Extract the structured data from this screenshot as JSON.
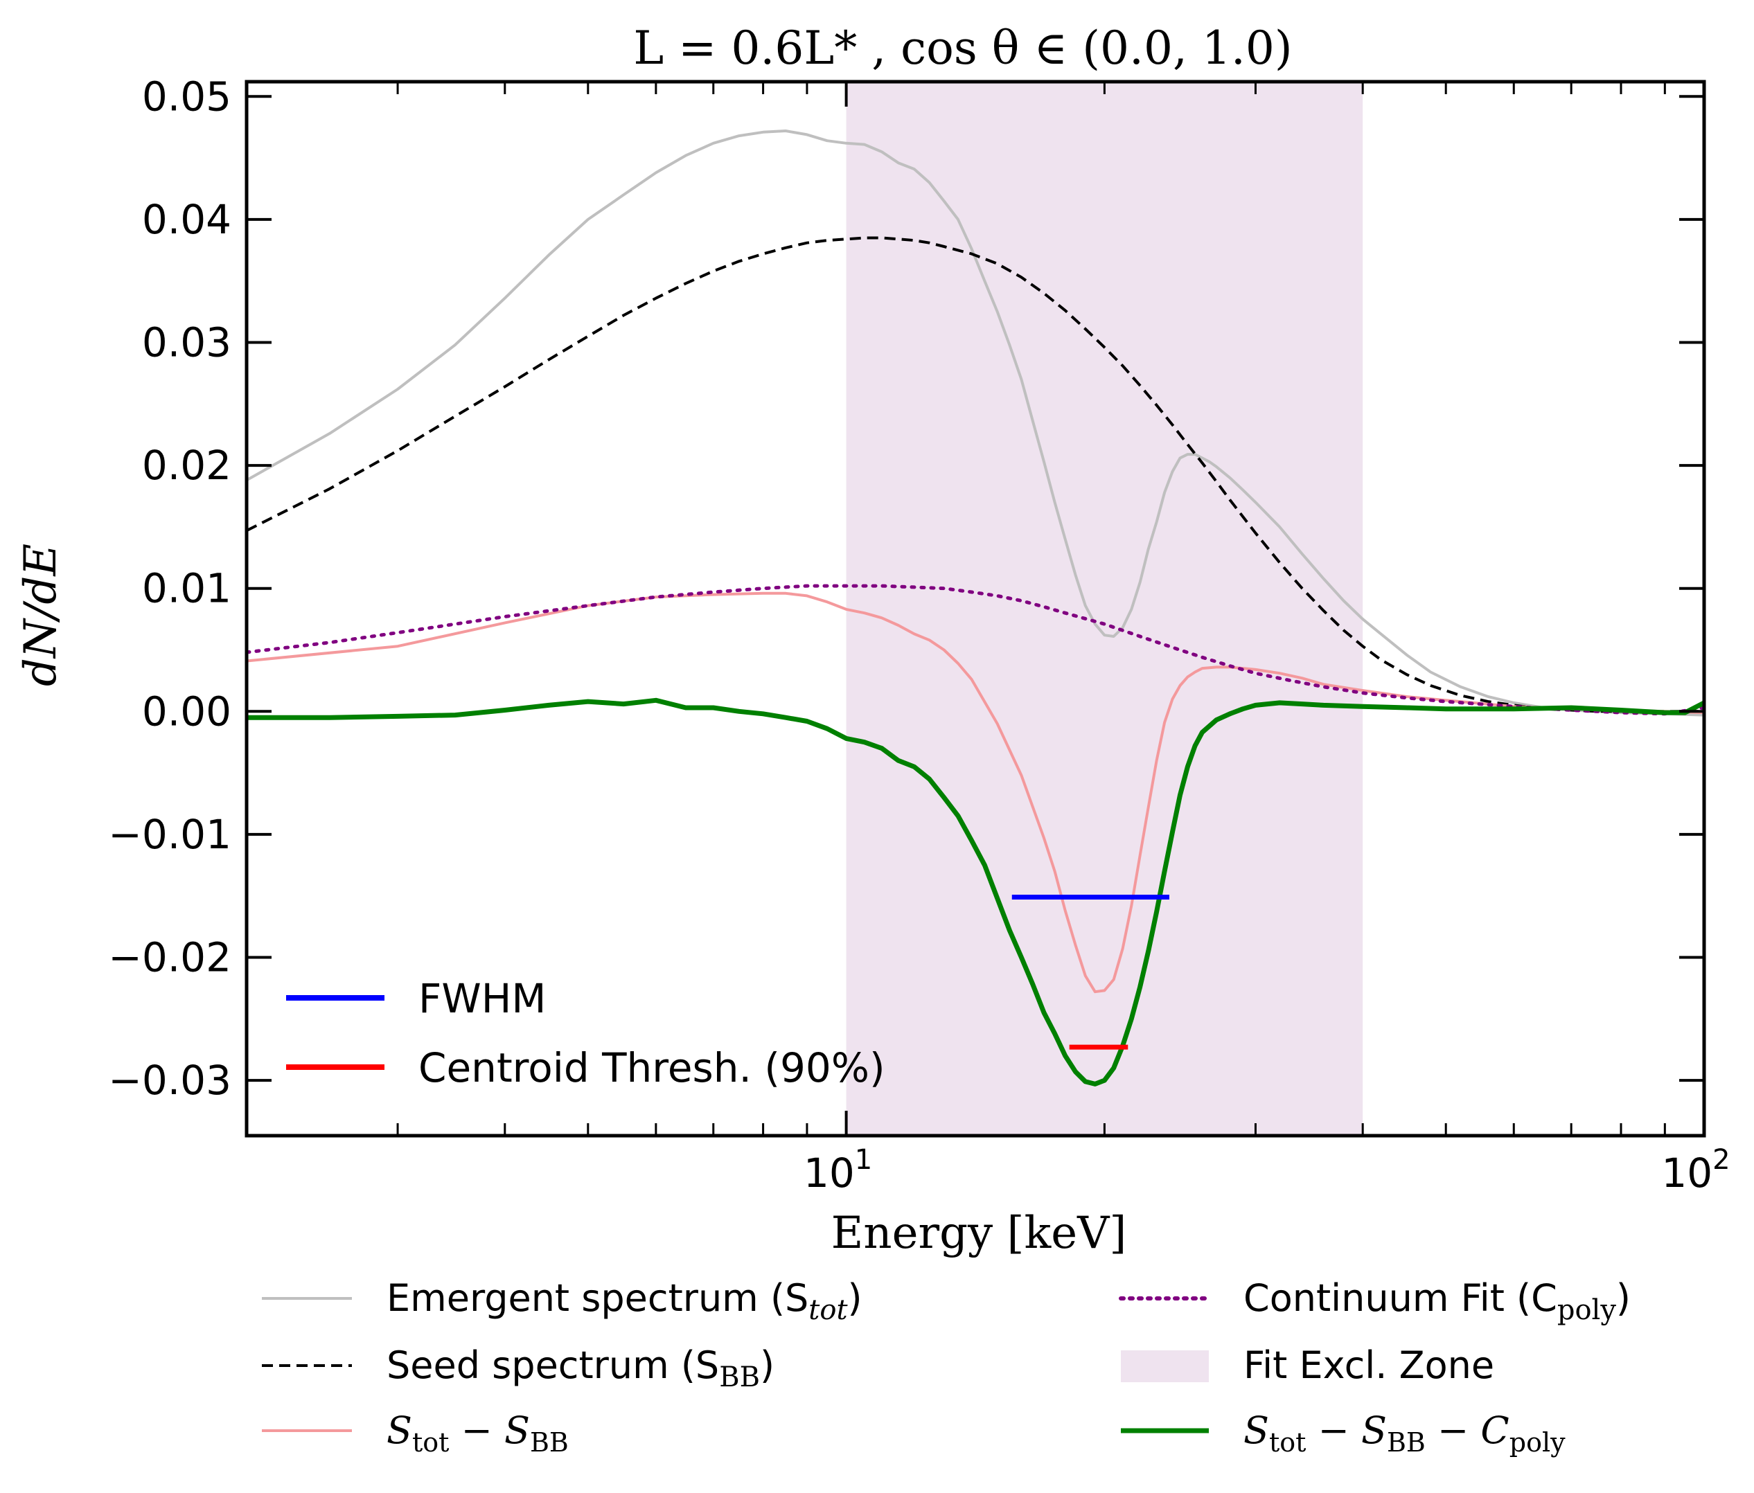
{
  "chart_data": {
    "type": "line",
    "title": "L = 0.6L* ,  cos θ ∈ (0.0, 1.0)",
    "xlabel": "Energy [keV]",
    "ylabel": "dN/dE",
    "xscale": "log",
    "xlim": [
      2.0,
      100
    ],
    "ylim": [
      -0.0345,
      0.0512
    ],
    "yticks": [
      -0.03,
      -0.02,
      -0.01,
      0.0,
      0.01,
      0.02,
      0.03,
      0.04,
      0.05
    ],
    "ytick_labels": [
      "−0.03",
      "−0.02",
      "−0.01",
      "0.00",
      "0.01",
      "0.02",
      "0.03",
      "0.04",
      "0.05"
    ],
    "xticks_major": [
      10,
      100
    ],
    "xtick_labels": [
      {
        "base": "10",
        "exp": "1"
      },
      {
        "base": "10",
        "exp": "2"
      }
    ],
    "excluded_zone": {
      "x0": 10,
      "x1": 40,
      "color": "#efe3ef"
    },
    "series": [
      {
        "name": "Emergent spectrum (S_tot)",
        "legend_label": "Emergent spectrum (S",
        "legend_sub": "tot",
        "color": "#bfbfbf",
        "style": "solid",
        "width": 4,
        "x": [
          2.0,
          2.5,
          3.0,
          3.5,
          4.0,
          4.5,
          5.0,
          5.5,
          6.0,
          6.5,
          7.0,
          7.5,
          8.0,
          8.5,
          9.0,
          9.5,
          10.0,
          10.5,
          11.0,
          11.5,
          12.0,
          12.5,
          13.0,
          13.5,
          14.0,
          14.5,
          15.0,
          15.5,
          16.0,
          16.5,
          17.0,
          17.5,
          18.0,
          18.5,
          19.0,
          19.5,
          20.0,
          20.5,
          21.0,
          21.5,
          22.0,
          22.5,
          23.0,
          23.5,
          24.0,
          24.5,
          25.0,
          25.5,
          26.0,
          26.5,
          27.0,
          28.0,
          29.0,
          30.0,
          32.0,
          34.0,
          36.0,
          38.0,
          40.0,
          42.0,
          45.0,
          48.0,
          52.0,
          56.0,
          60.0,
          65.0,
          70.0,
          75.0,
          80.0,
          90.0,
          100.0
        ],
        "y": [
          0.0188,
          0.0226,
          0.0262,
          0.0298,
          0.0336,
          0.0371,
          0.04,
          0.042,
          0.0438,
          0.0452,
          0.0462,
          0.0468,
          0.0471,
          0.0472,
          0.0469,
          0.0464,
          0.0462,
          0.0461,
          0.0455,
          0.0446,
          0.0441,
          0.043,
          0.0415,
          0.04,
          0.0376,
          0.035,
          0.0325,
          0.0298,
          0.027,
          0.0236,
          0.0203,
          0.017,
          0.014,
          0.0111,
          0.0086,
          0.0071,
          0.0062,
          0.0061,
          0.0068,
          0.0083,
          0.0105,
          0.0132,
          0.0154,
          0.0178,
          0.0195,
          0.0206,
          0.0209,
          0.0209,
          0.0206,
          0.0203,
          0.0199,
          0.019,
          0.018,
          0.017,
          0.015,
          0.0128,
          0.0108,
          0.009,
          0.0075,
          0.0063,
          0.0046,
          0.0032,
          0.002,
          0.0012,
          0.0007,
          0.0003,
          0.0001,
          0.0,
          -0.0001,
          -0.0002,
          -0.0003
        ]
      },
      {
        "name": "Seed spectrum (S_BB)",
        "legend_label": "Seed spectrum (S",
        "legend_sub": "BB",
        "color": "#000000",
        "style": "dashed",
        "width": 4,
        "x": [
          2.0,
          2.5,
          3.0,
          3.5,
          4.0,
          4.5,
          5.0,
          5.5,
          6.0,
          6.5,
          7.0,
          7.5,
          8.0,
          8.5,
          9.0,
          9.5,
          10.0,
          10.5,
          11.0,
          11.5,
          12.0,
          12.5,
          13.0,
          14.0,
          15.0,
          16.0,
          17.0,
          18.0,
          19.0,
          20.0,
          21.0,
          22.0,
          23.0,
          24.0,
          25.0,
          26.0,
          27.0,
          28.0,
          30.0,
          32.0,
          34.0,
          36.0,
          38.0,
          40.0,
          42.0,
          45.0,
          48.0,
          52.0,
          56.0,
          60.0,
          65.0,
          70.0,
          75.0,
          80.0,
          90.0,
          100.0
        ],
        "y": [
          0.0147,
          0.0181,
          0.0212,
          0.024,
          0.0264,
          0.0286,
          0.0305,
          0.0322,
          0.0336,
          0.0348,
          0.0358,
          0.0366,
          0.0372,
          0.0377,
          0.0381,
          0.0383,
          0.0384,
          0.0385,
          0.0385,
          0.0384,
          0.0383,
          0.0381,
          0.0378,
          0.0372,
          0.0364,
          0.0353,
          0.034,
          0.0326,
          0.0311,
          0.0296,
          0.0281,
          0.0265,
          0.0249,
          0.0233,
          0.0217,
          0.0202,
          0.0187,
          0.0172,
          0.0145,
          0.0121,
          0.01,
          0.0082,
          0.0066,
          0.0053,
          0.0042,
          0.003,
          0.0021,
          0.0013,
          0.0008,
          0.0005,
          0.0002,
          0.0001,
          0.0,
          0.0,
          0.0,
          0.0
        ]
      },
      {
        "name": "S_tot − S_BB",
        "color": "#f4999c",
        "style": "solid",
        "width": 4,
        "x": [
          2.0,
          3.0,
          4.0,
          5.0,
          6.0,
          7.0,
          8.0,
          8.5,
          9.0,
          9.5,
          10.0,
          10.5,
          11.0,
          11.5,
          12.0,
          12.5,
          13.0,
          13.5,
          14.0,
          15.0,
          16.0,
          17.0,
          17.5,
          18.0,
          18.5,
          19.0,
          19.5,
          20.0,
          20.5,
          21.0,
          21.5,
          22.0,
          22.5,
          23.0,
          23.5,
          24.0,
          24.5,
          25.0,
          25.5,
          26.0,
          27.0,
          28.0,
          29.0,
          30.0,
          32.0,
          34.0,
          36.0,
          40.0,
          45.0,
          50.0,
          60.0,
          70.0,
          80.0,
          90.0,
          100.0
        ],
        "y": [
          0.0041,
          0.0053,
          0.0072,
          0.0086,
          0.0093,
          0.0095,
          0.0096,
          0.0096,
          0.0094,
          0.0089,
          0.0083,
          0.008,
          0.0076,
          0.007,
          0.0063,
          0.0058,
          0.005,
          0.0039,
          0.0026,
          -0.001,
          -0.0052,
          -0.0103,
          -0.013,
          -0.0162,
          -0.019,
          -0.0215,
          -0.0228,
          -0.0227,
          -0.0218,
          -0.0193,
          -0.0158,
          -0.0117,
          -0.0078,
          -0.004,
          -0.0009,
          0.001,
          0.0021,
          0.0028,
          0.0032,
          0.0035,
          0.0036,
          0.0036,
          0.0035,
          0.0034,
          0.0031,
          0.0027,
          0.0022,
          0.0017,
          0.0012,
          0.0009,
          0.0004,
          0.0002,
          0.0001,
          0.0,
          -0.0001
        ]
      },
      {
        "name": "Continuum Fit (C_poly)",
        "legend_label": "Continuum Fit (C",
        "legend_sub": "poly",
        "color": "#800080",
        "style": "dotted",
        "width": 5,
        "x": [
          2.0,
          2.5,
          3.0,
          3.5,
          4.0,
          5.0,
          6.0,
          7.0,
          8.0,
          9.0,
          10.0,
          11.0,
          12.0,
          13.0,
          14.0,
          15.0,
          16.0,
          17.0,
          18.0,
          20.0,
          22.0,
          24.0,
          26.0,
          28.0,
          30.0,
          33.0,
          36.0,
          40.0,
          45.0,
          50.0,
          60.0,
          70.0,
          80.0,
          90.0,
          100.0
        ],
        "y": [
          0.0048,
          0.0056,
          0.0064,
          0.0071,
          0.0077,
          0.0086,
          0.0093,
          0.0097,
          0.01,
          0.0102,
          0.0102,
          0.0102,
          0.0101,
          0.01,
          0.0097,
          0.0094,
          0.009,
          0.0085,
          0.008,
          0.0071,
          0.0061,
          0.0052,
          0.0044,
          0.0037,
          0.0031,
          0.0025,
          0.002,
          0.0015,
          0.0011,
          0.0008,
          0.0004,
          0.0001,
          -0.0001,
          -0.0002,
          0.0003
        ]
      },
      {
        "name": "S_tot − S_BB − C_poly",
        "color": "#008000",
        "style": "solid",
        "width": 7,
        "x": [
          2.0,
          2.5,
          3.0,
          3.5,
          4.0,
          4.5,
          5.0,
          5.5,
          6.0,
          6.5,
          7.0,
          7.5,
          8.0,
          8.5,
          9.0,
          9.5,
          10.0,
          10.5,
          11.0,
          11.5,
          12.0,
          12.5,
          13.0,
          13.5,
          14.0,
          14.5,
          15.0,
          15.5,
          16.0,
          16.5,
          17.0,
          17.5,
          18.0,
          18.5,
          19.0,
          19.5,
          20.0,
          20.5,
          21.0,
          21.5,
          22.0,
          22.5,
          23.0,
          23.5,
          24.0,
          24.5,
          25.0,
          25.5,
          26.0,
          27.0,
          28.0,
          29.0,
          30.0,
          32.0,
          34.0,
          36.0,
          40.0,
          45.0,
          50.0,
          60.0,
          70.0,
          80.0,
          90.0,
          95.0,
          100.0
        ],
        "y": [
          -0.0005,
          -0.0005,
          -0.0004,
          -0.0003,
          0.0001,
          0.0005,
          0.0008,
          0.0006,
          0.0009,
          0.0003,
          0.0003,
          0.0,
          -0.0002,
          -0.0005,
          -0.0008,
          -0.0014,
          -0.0022,
          -0.0025,
          -0.003,
          -0.004,
          -0.0045,
          -0.0055,
          -0.007,
          -0.0085,
          -0.0105,
          -0.0125,
          -0.0152,
          -0.0178,
          -0.02,
          -0.0222,
          -0.0245,
          -0.0262,
          -0.028,
          -0.0293,
          -0.0301,
          -0.0303,
          -0.03,
          -0.029,
          -0.0272,
          -0.025,
          -0.0224,
          -0.0195,
          -0.0163,
          -0.013,
          -0.0098,
          -0.0068,
          -0.0045,
          -0.0028,
          -0.0017,
          -0.0007,
          -0.0002,
          0.0002,
          0.0005,
          0.0007,
          0.0006,
          0.0005,
          0.0004,
          0.0003,
          0.0002,
          0.0002,
          0.0003,
          0.0001,
          -0.0001,
          -0.0001,
          0.0007
        ]
      }
    ],
    "markers": [
      {
        "name": "FWHM",
        "color": "#0000ff",
        "x0": 15.6,
        "x1": 23.8,
        "y": -0.0151
      },
      {
        "name": "Centroid Thresh. (90%)",
        "color": "#ff0000",
        "x0": 18.2,
        "x1": 21.3,
        "y": -0.0273
      }
    ],
    "inner_legend": [
      {
        "label": "FWHM",
        "color": "#0000ff"
      },
      {
        "label": "Centroid Thresh. (90%)",
        "color": "#ff0000"
      }
    ],
    "bottom_legend": {
      "left": [
        {
          "label": "Emergent spectrum (S",
          "sub": "tot",
          "close": ")",
          "color": "#bfbfbf",
          "style": "solid"
        },
        {
          "label": "Seed spectrum (S",
          "sub": "BB",
          "close": ")",
          "color": "#000000",
          "style": "dashed"
        },
        {
          "label": "S",
          "sub": "tot",
          "mid": " − S",
          "sub2": "BB",
          "color": "#f4999c",
          "style": "solid"
        }
      ],
      "right": [
        {
          "label": "Continuum Fit (C",
          "sub": "poly",
          "close": ")",
          "color": "#800080",
          "style": "dotted"
        },
        {
          "label": "Fit Excl. Zone",
          "color": "#efe3ef",
          "style": "patch"
        },
        {
          "label": "S",
          "sub": "tot",
          "mid": " − S",
          "sub2": "BB",
          "mid2": " − C",
          "sub3": "poly",
          "color": "#008000",
          "style": "thick"
        }
      ]
    }
  }
}
